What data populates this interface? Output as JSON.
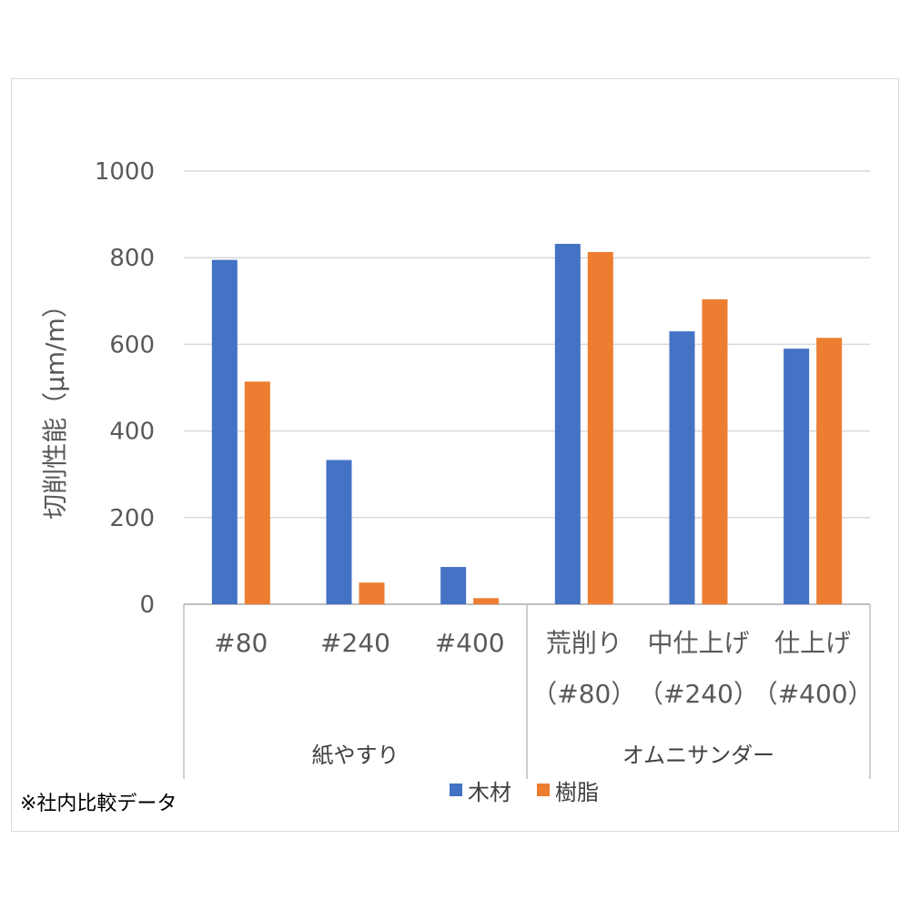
{
  "chart_data": {
    "type": "bar",
    "ylabel": "切削性能（μm/m）",
    "ylim": [
      0,
      1000
    ],
    "yticks": [
      0,
      200,
      400,
      600,
      800,
      1000
    ],
    "grid": true,
    "categories": [
      {
        "lines": [
          "#80"
        ],
        "group": "紙やすり"
      },
      {
        "lines": [
          "#240"
        ],
        "group": "紙やすり"
      },
      {
        "lines": [
          "#400"
        ],
        "group": "紙やすり"
      },
      {
        "lines": [
          "荒削り",
          "（#80）"
        ],
        "group": "オムニサンダー"
      },
      {
        "lines": [
          "中仕上げ",
          "（#240）"
        ],
        "group": "オムニサンダー"
      },
      {
        "lines": [
          "仕上げ",
          "（#400）"
        ],
        "group": "オムニサンダー"
      }
    ],
    "groups": [
      "紙やすり",
      "オムニサンダー"
    ],
    "series": [
      {
        "name": "木材",
        "color": "#4472C4",
        "values": [
          795,
          333,
          86,
          832,
          630,
          590
        ]
      },
      {
        "name": "樹脂",
        "color": "#ED7D31",
        "values": [
          514,
          50,
          14,
          813,
          704,
          615
        ]
      }
    ],
    "legend_position": "bottom"
  },
  "note": "※社内比較データ"
}
